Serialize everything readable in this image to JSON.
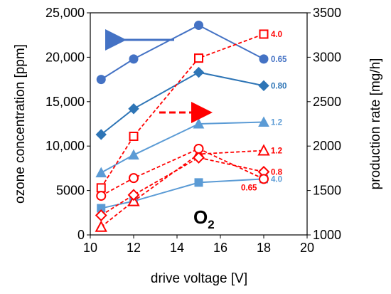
{
  "chart_data": {
    "type": "line",
    "xlabel": "drive voltage [V]",
    "ylabel_left": "ozone concentration [ppm]",
    "ylabel_right": "production rate  [mg/h]",
    "xlim": [
      10,
      20
    ],
    "ylim_left": [
      0,
      25000
    ],
    "ylim_right": [
      1000,
      3500
    ],
    "x_ticks": [
      "10",
      "12",
      "14",
      "16",
      "18",
      "20"
    ],
    "y_left_ticks": [
      "0",
      "5000",
      "10,000",
      "15,000",
      "20,000",
      "25,000"
    ],
    "y_right_ticks": [
      "1000",
      "1500",
      "2000",
      "2500",
      "3000",
      "3500"
    ],
    "grid": false,
    "annotation": {
      "base": "O",
      "subscript": "2"
    },
    "colors": {
      "blue_dark": "#4472C4",
      "blue_mid": "#2E75B6",
      "blue_light": "#5B9BD5",
      "red": "#FF0000"
    },
    "series": [
      {
        "label": "0.65",
        "axis": "left",
        "marker": "circle",
        "color": "#4472C4",
        "dash": false,
        "x": [
          10.5,
          12,
          15,
          18
        ],
        "values": [
          17500,
          19800,
          23600,
          19800
        ]
      },
      {
        "label": "0.80",
        "axis": "left",
        "marker": "diamond",
        "color": "#2E75B6",
        "dash": false,
        "x": [
          10.5,
          12,
          15,
          18
        ],
        "values": [
          11300,
          14200,
          18300,
          16800
        ]
      },
      {
        "label": "1.2",
        "axis": "left",
        "marker": "triangle",
        "color": "#5B9BD5",
        "dash": false,
        "x": [
          10.5,
          12,
          15,
          18
        ],
        "values": [
          7000,
          9000,
          12500,
          12700
        ]
      },
      {
        "label": "4.0",
        "axis": "left",
        "marker": "square",
        "color": "#5B9BD5",
        "dash": false,
        "x": [
          10.5,
          12,
          15,
          18
        ],
        "values": [
          3000,
          3800,
          5900,
          6300
        ]
      },
      {
        "label": "4.0",
        "axis": "right",
        "marker": "square",
        "color": "#FF0000",
        "dash": true,
        "x": [
          10.5,
          12,
          15,
          18
        ],
        "values": [
          1530,
          2110,
          2990,
          3260
        ]
      },
      {
        "label": "1.2",
        "axis": "right",
        "marker": "triangle",
        "color": "#FF0000",
        "dash": true,
        "x": [
          10.5,
          12,
          15,
          18
        ],
        "values": [
          1090,
          1380,
          1910,
          1950
        ]
      },
      {
        "label": "0.8",
        "axis": "right",
        "marker": "diamond",
        "color": "#FF0000",
        "dash": true,
        "x": [
          10.5,
          12,
          15,
          18
        ],
        "values": [
          1220,
          1450,
          1870,
          1710
        ]
      },
      {
        "label": "0.65",
        "axis": "right",
        "marker": "circle",
        "color": "#FF0000",
        "dash": true,
        "x": [
          10.5,
          12,
          15,
          18
        ],
        "values": [
          1440,
          1640,
          1970,
          1630
        ]
      }
    ]
  }
}
